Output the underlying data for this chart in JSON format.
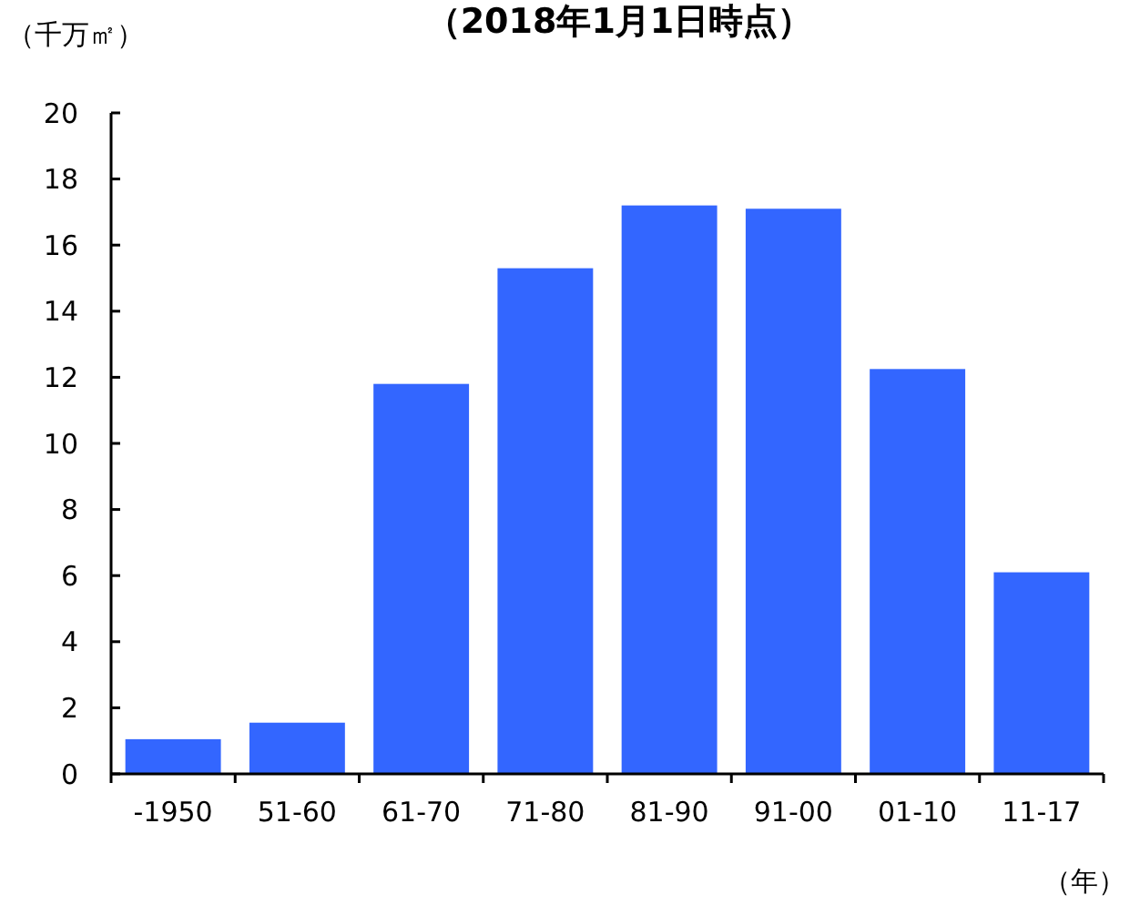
{
  "chart_data": {
    "type": "bar",
    "subtitle": "（2018年1月1日時点）",
    "ylabel": "（千万㎡）",
    "xlabel": "（年）",
    "categories": [
      "-1950",
      "51-60",
      "61-70",
      "71-80",
      "81-90",
      "91-00",
      "01-10",
      "11-17"
    ],
    "values": [
      1.05,
      1.55,
      11.8,
      15.3,
      17.2,
      17.1,
      12.25,
      6.1
    ],
    "color": "#3366ff",
    "ylim": [
      0,
      20
    ],
    "yticks": [
      0,
      2,
      4,
      6,
      8,
      10,
      12,
      14,
      16,
      18,
      20
    ],
    "grid": false
  }
}
